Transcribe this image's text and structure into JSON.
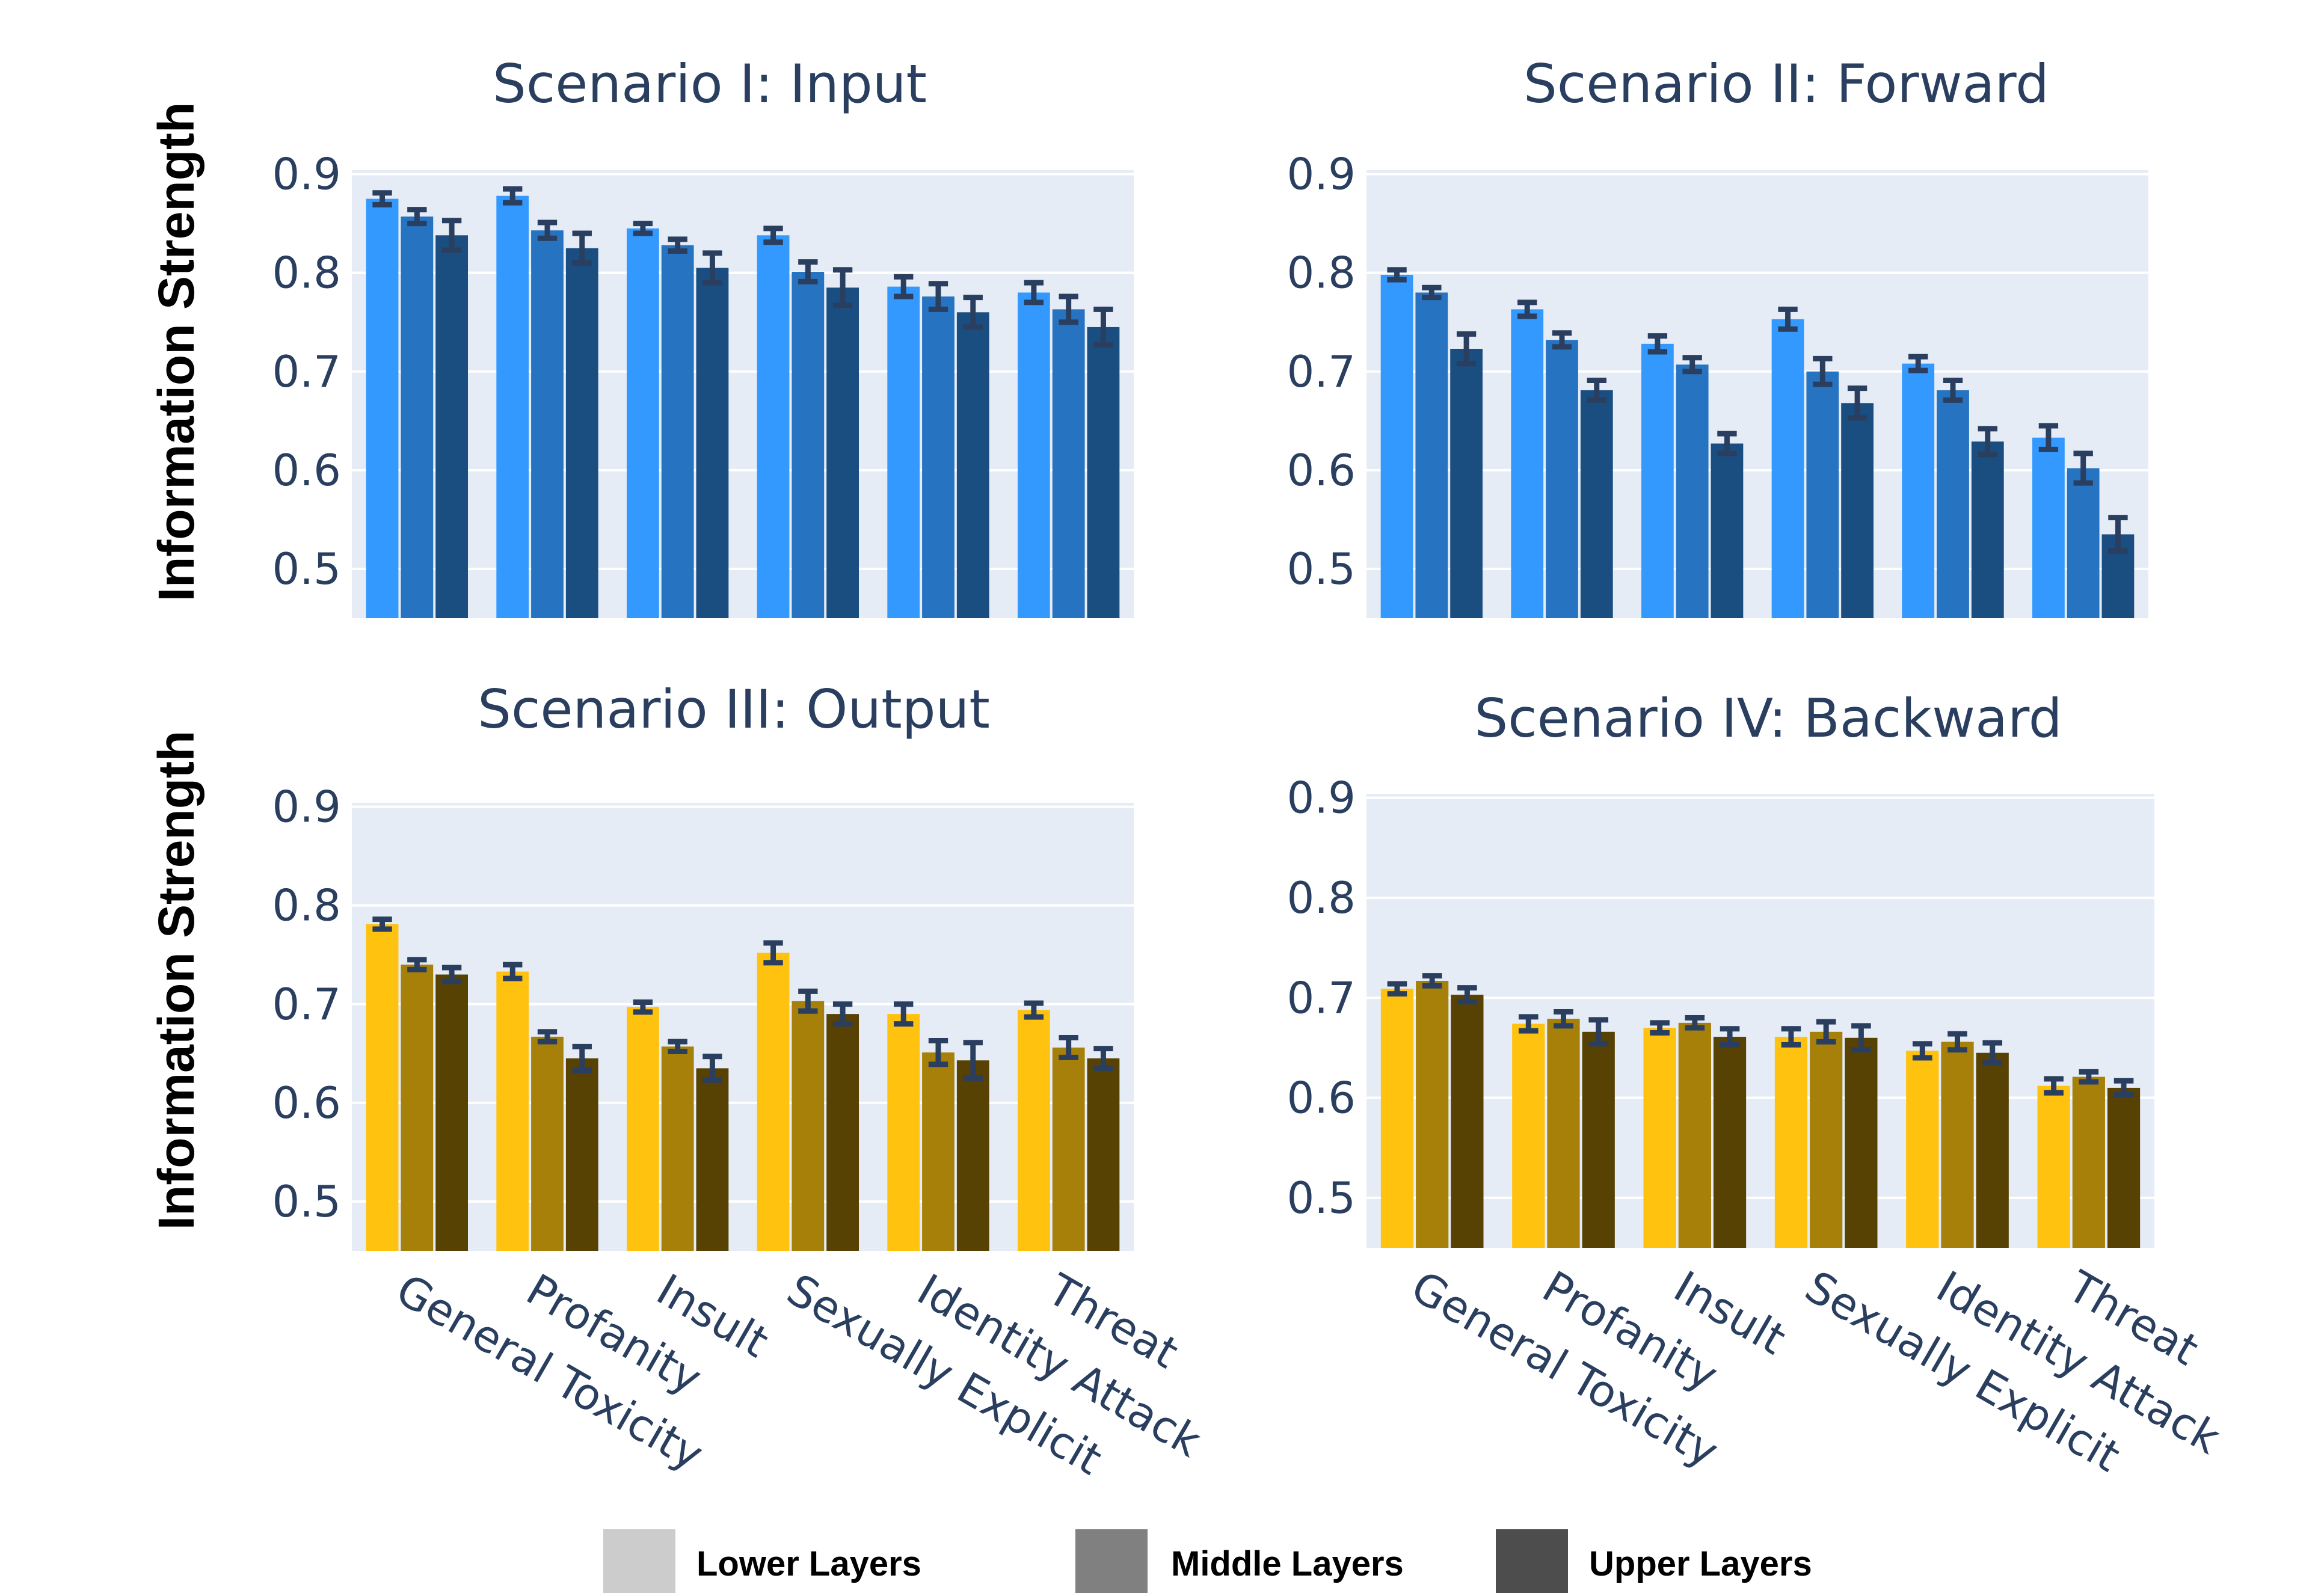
{
  "figure": {
    "legend": [
      {
        "label": "Lower Layers",
        "color": "#cccccc"
      },
      {
        "label": "Middle Layers",
        "color": "#808080"
      },
      {
        "label": "Upper Layers",
        "color": "#4d4d4d"
      }
    ]
  },
  "chart_data": [
    {
      "type": "bar",
      "title": "Scenario I: Input",
      "ylabel": "Information Strength",
      "ylim": [
        0.45,
        0.9
      ],
      "yticks": [
        "0.5",
        "0.6",
        "0.7",
        "0.8",
        "0.9"
      ],
      "categories": [
        "General Toxicity",
        "Profanity",
        "Insult",
        "Sexually Explicit",
        "Identity Attack",
        "Threat"
      ],
      "colors": [
        "#3399ff",
        "#2673c2",
        "#1a4d80"
      ],
      "series": [
        {
          "name": "Lower Layers",
          "values": [
            0.875,
            0.878,
            0.845,
            0.838,
            0.786,
            0.78
          ],
          "errors": [
            0.006,
            0.007,
            0.005,
            0.007,
            0.01,
            0.01
          ]
        },
        {
          "name": "Middle Layers",
          "values": [
            0.857,
            0.843,
            0.828,
            0.801,
            0.776,
            0.763
          ],
          "errors": [
            0.007,
            0.008,
            0.006,
            0.01,
            0.013,
            0.013
          ]
        },
        {
          "name": "Upper Layers",
          "values": [
            0.838,
            0.825,
            0.805,
            0.785,
            0.76,
            0.745
          ],
          "errors": [
            0.015,
            0.015,
            0.015,
            0.018,
            0.015,
            0.018
          ]
        }
      ]
    },
    {
      "type": "bar",
      "title": "Scenario II: Forward",
      "ylabel": "",
      "ylim": [
        0.45,
        0.9
      ],
      "yticks": [
        "0.5",
        "0.6",
        "0.7",
        "0.8",
        "0.9"
      ],
      "categories": [
        "General Toxicity",
        "Profanity",
        "Insult",
        "Sexually Explicit",
        "Identity Attack",
        "Threat"
      ],
      "colors": [
        "#3399ff",
        "#2673c2",
        "#1a4d80"
      ],
      "series": [
        {
          "name": "Lower Layers",
          "values": [
            0.798,
            0.763,
            0.728,
            0.753,
            0.708,
            0.633
          ],
          "errors": [
            0.005,
            0.007,
            0.008,
            0.01,
            0.007,
            0.012
          ]
        },
        {
          "name": "Middle Layers",
          "values": [
            0.78,
            0.732,
            0.707,
            0.7,
            0.681,
            0.602
          ],
          "errors": [
            0.005,
            0.007,
            0.007,
            0.013,
            0.01,
            0.015
          ]
        },
        {
          "name": "Upper Layers",
          "values": [
            0.723,
            0.681,
            0.627,
            0.668,
            0.629,
            0.535
          ],
          "errors": [
            0.015,
            0.01,
            0.01,
            0.015,
            0.013,
            0.017
          ]
        }
      ]
    },
    {
      "type": "bar",
      "title": "Scenario III: Output",
      "ylabel": "Information Strength",
      "ylim": [
        0.45,
        0.9
      ],
      "yticks": [
        "0.5",
        "0.6",
        "0.7",
        "0.8",
        "0.9"
      ],
      "categories": [
        "General Toxicity",
        "Profanity",
        "Insult",
        "Sexually Explicit",
        "Identity Attack",
        "Threat"
      ],
      "colors": [
        "#ffc20e",
        "#a68008",
        "#574103"
      ],
      "series": [
        {
          "name": "Lower Layers",
          "values": [
            0.781,
            0.733,
            0.697,
            0.752,
            0.69,
            0.694
          ],
          "errors": [
            0.005,
            0.007,
            0.005,
            0.01,
            0.01,
            0.007
          ]
        },
        {
          "name": "Middle Layers",
          "values": [
            0.74,
            0.667,
            0.657,
            0.703,
            0.651,
            0.656
          ],
          "errors": [
            0.005,
            0.005,
            0.005,
            0.01,
            0.012,
            0.01
          ]
        },
        {
          "name": "Upper Layers",
          "values": [
            0.73,
            0.645,
            0.635,
            0.69,
            0.643,
            0.645
          ],
          "errors": [
            0.007,
            0.012,
            0.012,
            0.01,
            0.018,
            0.01
          ]
        }
      ]
    },
    {
      "type": "bar",
      "title": "Scenario IV: Backward",
      "ylabel": "",
      "ylim": [
        0.45,
        0.9
      ],
      "yticks": [
        "0.5",
        "0.6",
        "0.7",
        "0.8",
        "0.9"
      ],
      "categories": [
        "General Toxicity",
        "Profanity",
        "Insult",
        "Sexually Explicit",
        "Identity Attack",
        "Threat"
      ],
      "colors": [
        "#ffc20e",
        "#a68008",
        "#574103"
      ],
      "series": [
        {
          "name": "Lower Layers",
          "values": [
            0.709,
            0.674,
            0.67,
            0.661,
            0.647,
            0.612
          ],
          "errors": [
            0.005,
            0.007,
            0.005,
            0.008,
            0.007,
            0.007
          ]
        },
        {
          "name": "Middle Layers",
          "values": [
            0.717,
            0.679,
            0.675,
            0.666,
            0.656,
            0.621
          ],
          "errors": [
            0.005,
            0.007,
            0.005,
            0.01,
            0.008,
            0.005
          ]
        },
        {
          "name": "Upper Layers",
          "values": [
            0.703,
            0.666,
            0.661,
            0.66,
            0.645,
            0.61
          ],
          "errors": [
            0.007,
            0.012,
            0.008,
            0.012,
            0.01,
            0.007
          ]
        }
      ]
    }
  ]
}
